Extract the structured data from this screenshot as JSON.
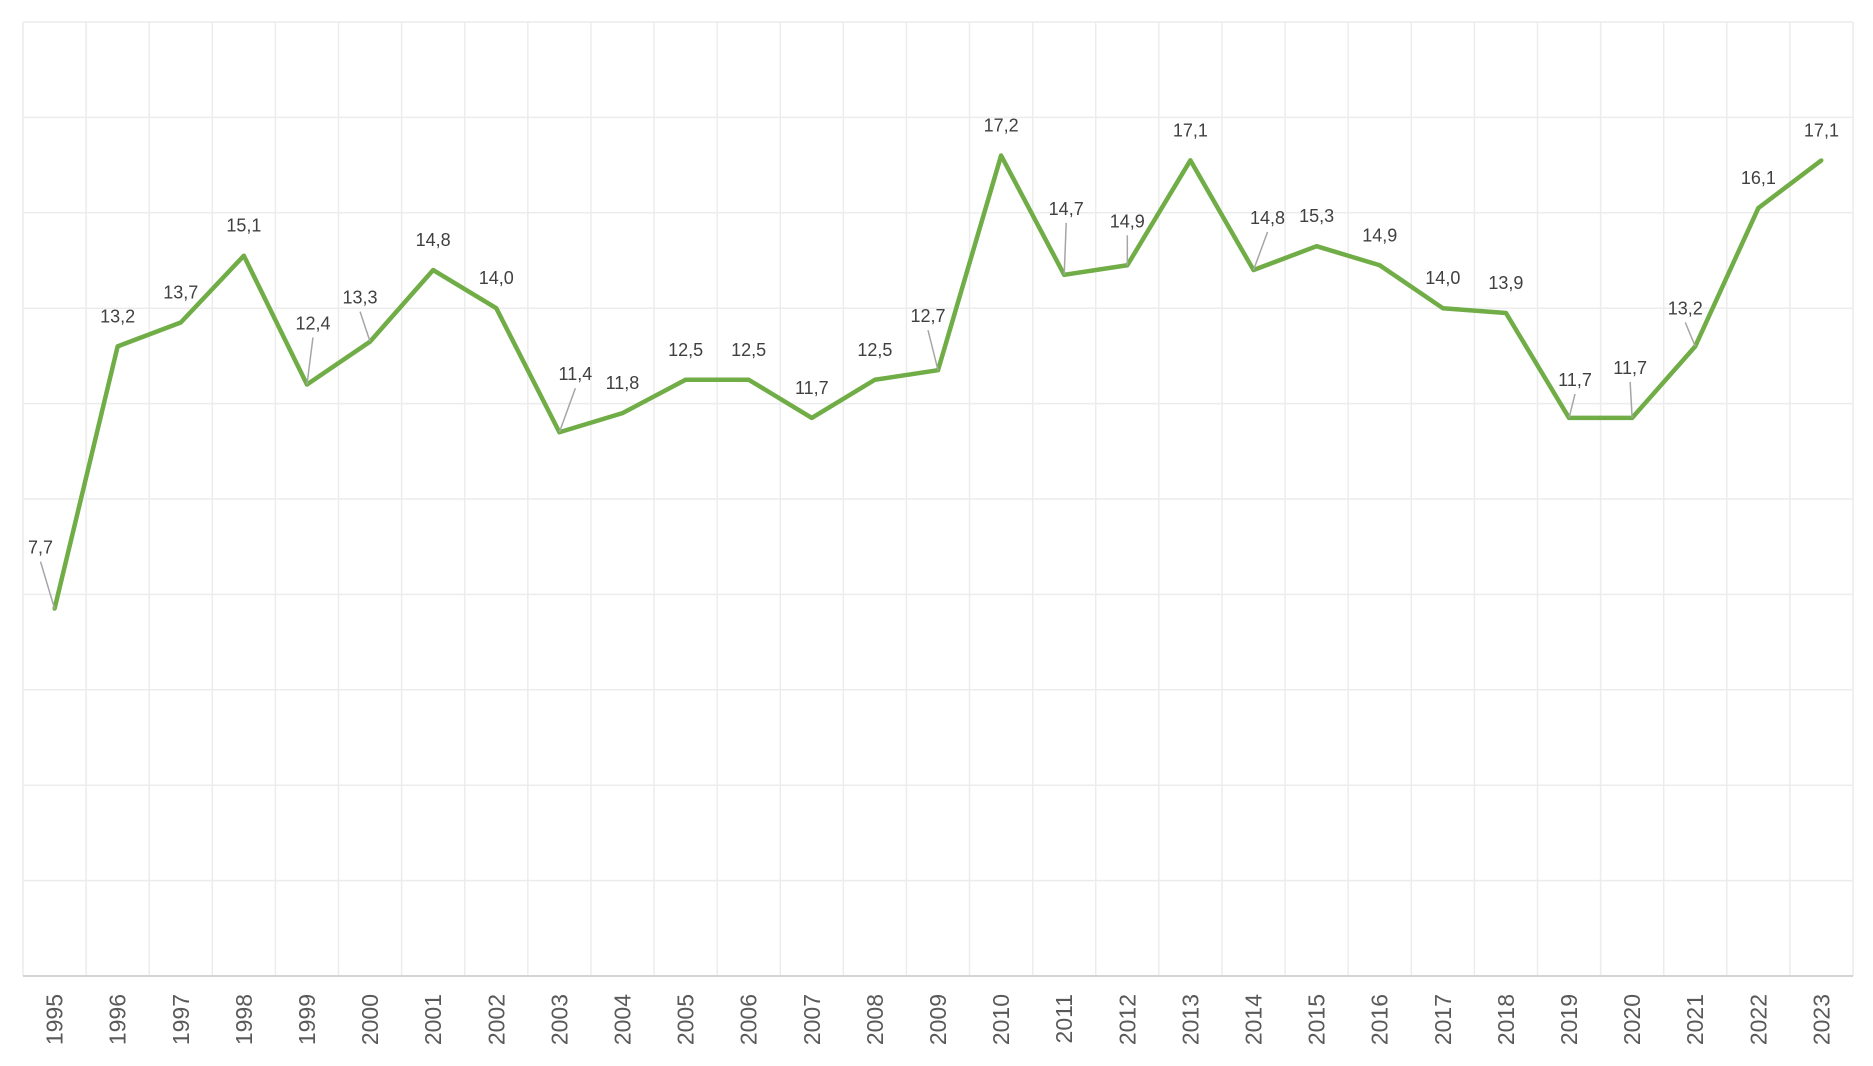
{
  "chart_data": {
    "type": "line",
    "title": "",
    "xlabel": "",
    "ylabel": "",
    "categories": [
      "1995",
      "1996",
      "1997",
      "1998",
      "1999",
      "2000",
      "2001",
      "2002",
      "2003",
      "2004",
      "2005",
      "2006",
      "2007",
      "2008",
      "2009",
      "2010",
      "2011",
      "2012",
      "2013",
      "2014",
      "2015",
      "2016",
      "2017",
      "2018",
      "2019",
      "2020",
      "2021",
      "2022",
      "2023"
    ],
    "series": [
      {
        "values": [
          7.7,
          13.2,
          13.7,
          15.1,
          12.4,
          13.3,
          14.8,
          14.0,
          11.4,
          11.8,
          12.5,
          12.5,
          11.7,
          12.5,
          12.7,
          17.2,
          14.7,
          14.9,
          17.1,
          14.8,
          15.3,
          14.9,
          14.0,
          13.9,
          11.7,
          11.7,
          13.2,
          16.1,
          17.1
        ],
        "labels": [
          "7,7",
          "13,2",
          "13,7",
          "15,1",
          "12,4",
          "13,3",
          "14,8",
          "14,0",
          "11,4",
          "11,8",
          "12,5",
          "12,5",
          "11,7",
          "12,5",
          "12,7",
          "17,2",
          "14,7",
          "14,9",
          "17,1",
          "14,8",
          "15,3",
          "14,9",
          "14,0",
          "13,9",
          "11,7",
          "11,7",
          "13,2",
          "16,1",
          "17,1"
        ],
        "color": "#70AD47"
      }
    ],
    "ylim": [
      0,
      20
    ],
    "y_gridline_step": 2,
    "grid": true,
    "y_tick_labels_shown": false,
    "legend": "none",
    "x_tick_rotation": "vertical"
  }
}
